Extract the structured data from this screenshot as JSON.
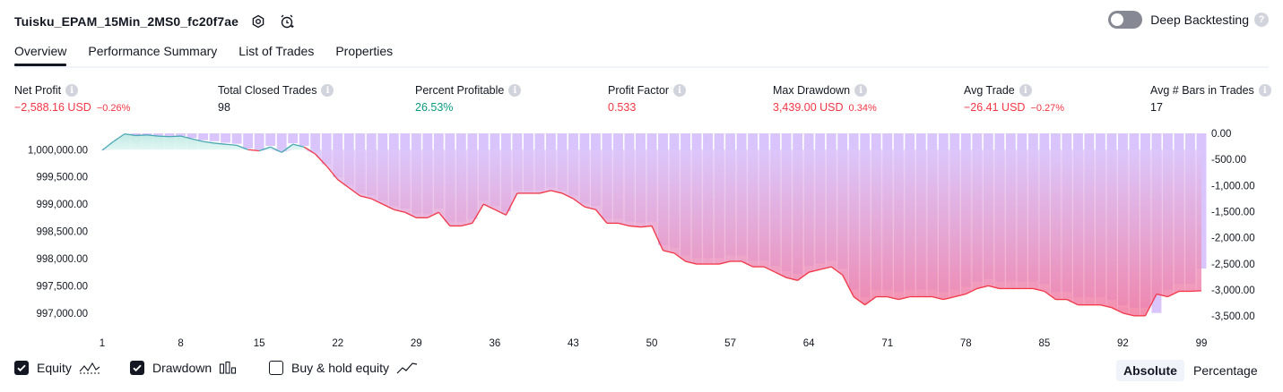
{
  "header": {
    "strategy_name": "Tuisku_EPAM_15Min_2MS0_fc20f7ae",
    "deep_backtesting_label": "Deep Backtesting"
  },
  "tabs": [
    {
      "label": "Overview",
      "active": true
    },
    {
      "label": "Performance Summary",
      "active": false
    },
    {
      "label": "List of Trades",
      "active": false
    },
    {
      "label": "Properties",
      "active": false
    }
  ],
  "metrics": [
    {
      "label": "Net Profit",
      "value": "−2,588.16 USD",
      "pct": "−0.26%",
      "color": "#f23645"
    },
    {
      "label": "Total Closed Trades",
      "value": "98",
      "pct": "",
      "color": "#131722"
    },
    {
      "label": "Percent Profitable",
      "value": "26.53%",
      "pct": "",
      "color": "#089981"
    },
    {
      "label": "Profit Factor",
      "value": "0.533",
      "pct": "",
      "color": "#f23645"
    },
    {
      "label": "Max Drawdown",
      "value": "3,439.00 USD",
      "pct": "0.34%",
      "color": "#f23645"
    },
    {
      "label": "Avg Trade",
      "value": "−26.41 USD",
      "pct": "−0.27%",
      "color": "#f23645"
    },
    {
      "label": "Avg # Bars in Trades",
      "value": "17",
      "pct": "",
      "color": "#131722"
    }
  ],
  "legend": {
    "equity_label": "Equity",
    "equity_checked": true,
    "drawdown_label": "Drawdown",
    "drawdown_checked": true,
    "buyhold_label": "Buy & hold equity",
    "buyhold_checked": false
  },
  "mode": {
    "absolute_label": "Absolute",
    "percentage_label": "Percentage",
    "active": "Absolute"
  },
  "colors": {
    "loss": "#f23645",
    "profit": "#089981",
    "drawdown_bar": "#d9c4fb",
    "equity_line_profit": "#4aa8b6"
  },
  "chart_data": {
    "type": "area",
    "x_ticks": [
      1,
      8,
      15,
      22,
      29,
      36,
      43,
      50,
      57,
      64,
      71,
      78,
      85,
      92,
      99
    ],
    "x_range": [
      1,
      99
    ],
    "equity_baseline": 1000000,
    "y_left_range": [
      996800,
      1000300
    ],
    "y_left_ticks": [
      {
        "value": 1000000,
        "label": "1,000,000.00"
      },
      {
        "value": 999500,
        "label": "999,500.00"
      },
      {
        "value": 999000,
        "label": "999,000.00"
      },
      {
        "value": 998500,
        "label": "998,500.00"
      },
      {
        "value": 998000,
        "label": "998,000.00"
      },
      {
        "value": 997500,
        "label": "997,500.00"
      },
      {
        "value": 997000,
        "label": "997,000.00"
      }
    ],
    "y_right_range": [
      -3650,
      0
    ],
    "y_right_ticks": [
      {
        "value": 0,
        "label": "0.00"
      },
      {
        "value": -500,
        "label": "-500.00"
      },
      {
        "value": -1000,
        "label": "-1,000.00"
      },
      {
        "value": -1500,
        "label": "-1,500.00"
      },
      {
        "value": -2000,
        "label": "-2,000.00"
      },
      {
        "value": -2500,
        "label": "-2,500.00"
      },
      {
        "value": -3000,
        "label": "-3,000.00"
      },
      {
        "value": -3500,
        "label": "-3,500.00"
      }
    ],
    "equity": [
      999990,
      1000150,
      1000290,
      1000260,
      1000270,
      1000250,
      1000240,
      1000250,
      1000200,
      1000150,
      1000120,
      1000100,
      1000080,
      1000000,
      999980,
      1000050,
      999950,
      1000100,
      1000050,
      999920,
      999700,
      999450,
      999300,
      999150,
      999100,
      999000,
      998900,
      998850,
      998750,
      998750,
      998850,
      998600,
      998600,
      998650,
      999000,
      998900,
      998800,
      999200,
      999200,
      999200,
      999250,
      999200,
      999100,
      998950,
      998900,
      998650,
      998650,
      998600,
      998580,
      998600,
      998150,
      998100,
      997950,
      997900,
      997900,
      997900,
      997950,
      997950,
      997850,
      997850,
      997750,
      997650,
      997600,
      997750,
      997800,
      997850,
      997700,
      997300,
      997150,
      997300,
      997300,
      997250,
      997300,
      997300,
      997300,
      997250,
      997300,
      997350,
      997450,
      997500,
      997450,
      997450,
      997450,
      997450,
      997400,
      997250,
      997250,
      997150,
      997150,
      997150,
      997100,
      997000,
      996950,
      996950,
      997350,
      997300,
      997400,
      997400,
      997410
    ],
    "drawdown": [
      0,
      0,
      0,
      -40,
      -30,
      -40,
      -50,
      -50,
      -90,
      -130,
      -150,
      -180,
      -200,
      -290,
      -310,
      -240,
      -340,
      -190,
      -240,
      -370,
      -590,
      -840,
      -990,
      -1140,
      -1190,
      -1290,
      -1390,
      -1440,
      -1540,
      -1540,
      -1440,
      -1690,
      -1690,
      -1640,
      -1290,
      -1390,
      -1490,
      -1090,
      -1090,
      -1090,
      -1040,
      -1090,
      -1190,
      -1340,
      -1390,
      -1640,
      -1640,
      -1690,
      -1710,
      -1690,
      -2140,
      -2190,
      -2340,
      -2390,
      -2390,
      -2390,
      -2340,
      -2340,
      -2440,
      -2440,
      -2540,
      -2640,
      -2690,
      -2540,
      -2490,
      -2440,
      -2590,
      -2990,
      -3140,
      -2990,
      -2990,
      -3040,
      -2990,
      -2990,
      -2990,
      -3040,
      -2990,
      -2940,
      -2840,
      -2790,
      -2840,
      -2840,
      -2840,
      -2840,
      -2890,
      -3040,
      -3040,
      -3140,
      -3140,
      -3140,
      -3190,
      -3290,
      -3340,
      -3340,
      -3439,
      -2990,
      -2890,
      -2880,
      -2590
    ]
  }
}
